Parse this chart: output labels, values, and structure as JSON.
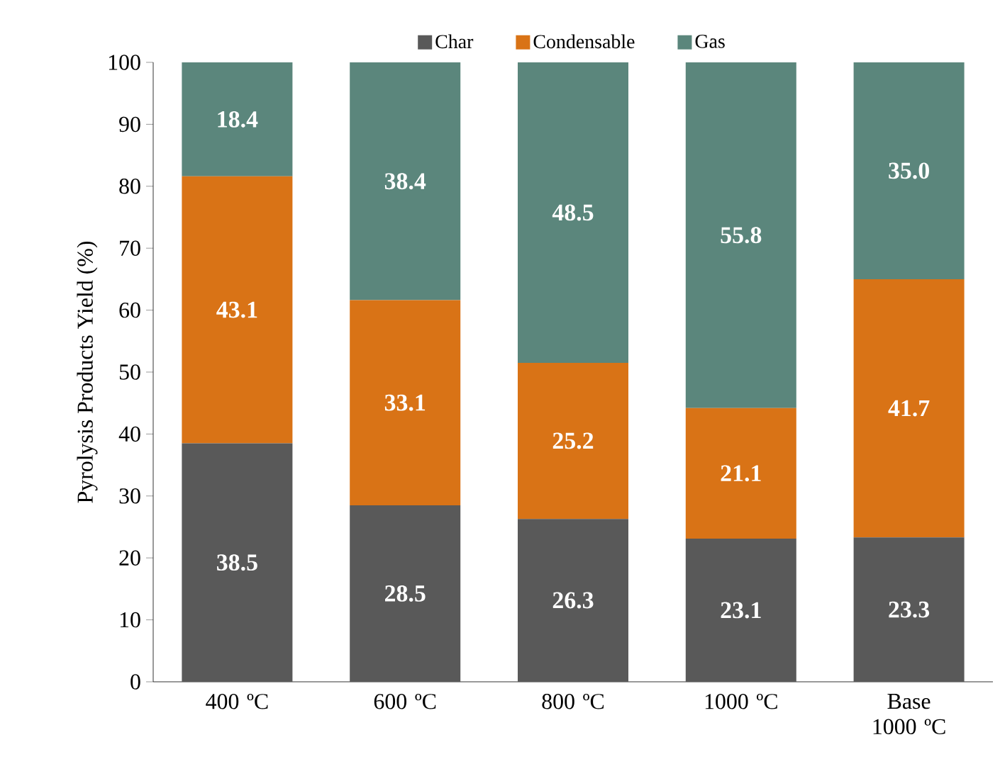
{
  "chart_data": {
    "type": "bar",
    "stacked": true,
    "ylabel": "Pyrolysis Products Yield (%)",
    "categories": [
      "400 ºC",
      "600 ºC",
      "800 ºC",
      "1000 ºC",
      "Base 1000 ºC"
    ],
    "series": [
      {
        "name": "Char",
        "color": "#595959",
        "values": [
          38.5,
          28.5,
          26.3,
          23.1,
          23.3
        ],
        "value_labels": [
          "38.5",
          "28.5",
          "26.3",
          "23.1",
          "23.3"
        ]
      },
      {
        "name": "Condensable",
        "color": "#d97316",
        "values": [
          43.1,
          33.1,
          25.2,
          21.1,
          41.7
        ],
        "value_labels": [
          "43.1",
          "33.1",
          "25.2",
          "21.1",
          "41.7"
        ]
      },
      {
        "name": "Gas",
        "color": "#5b867c",
        "values": [
          18.4,
          38.4,
          48.5,
          55.8,
          35.0
        ],
        "value_labels": [
          "18.4",
          "38.4",
          "48.5",
          "55.8",
          "35.0"
        ]
      }
    ],
    "ylim": [
      0,
      100
    ],
    "yticks": [
      0,
      10,
      20,
      30,
      40,
      50,
      60,
      70,
      80,
      90,
      100
    ],
    "legend": "top",
    "grid": false
  }
}
